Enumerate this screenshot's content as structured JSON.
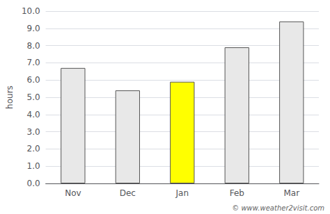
{
  "chart_data": {
    "type": "bar",
    "categories": [
      "Nov",
      "Dec",
      "Jan",
      "Feb",
      "Mar"
    ],
    "values": [
      6.7,
      5.4,
      5.9,
      7.9,
      9.4
    ],
    "colors": [
      "#e8e8e8",
      "#e8e8e8",
      "#ffff00",
      "#e8e8e8",
      "#e8e8e8"
    ],
    "ylabel": "hours",
    "ylim": [
      0,
      10.0
    ],
    "yticks": [
      {
        "value": 0,
        "label": "0.0"
      },
      {
        "value": 1,
        "label": "1.0"
      },
      {
        "value": 2,
        "label": "2.0"
      },
      {
        "value": 3,
        "label": "3.0"
      },
      {
        "value": 4,
        "label": "4.0"
      },
      {
        "value": 5,
        "label": "5.0"
      },
      {
        "value": 6,
        "label": "6.0"
      },
      {
        "value": 7,
        "label": "7.0"
      },
      {
        "value": 8,
        "label": "8.0"
      },
      {
        "value": 9,
        "label": "9.0"
      },
      {
        "value": 10,
        "label": "10.0"
      }
    ],
    "grid": true,
    "annotations": [
      "© www.weather2visit.com"
    ]
  }
}
